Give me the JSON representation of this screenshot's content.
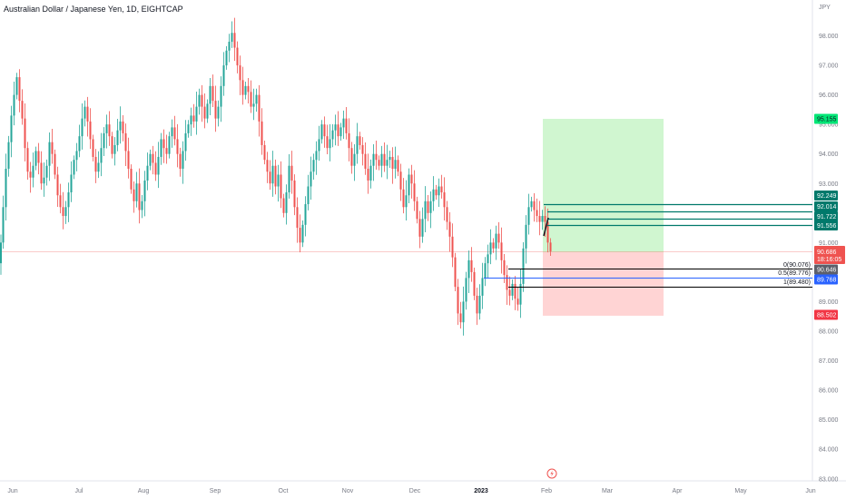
{
  "header": {
    "title": "Australian Dollar / Japanese Yen, 1D, EIGHTCAP",
    "currency": "JPY"
  },
  "colors": {
    "up": "#26a69a",
    "down": "#ef5350",
    "profit_zone": "#c8f5c8",
    "loss_zone": "#ffcdcd",
    "level_line": "#00796b",
    "fib_line": "#000000",
    "current_price": "#ef5350"
  },
  "chart_data": {
    "type": "candlestick",
    "title": "Australian Dollar / Japanese Yen, 1D, EIGHTCAP",
    "ylabel": "JPY",
    "ylim": [
      82.9,
      98.6
    ],
    "y_ticks": [
      "83.000",
      "84.000",
      "85.000",
      "86.000",
      "87.000",
      "88.000",
      "89.000",
      "90.000",
      "91.000",
      "92.000",
      "93.000",
      "94.000",
      "95.000",
      "96.000",
      "97.000",
      "98.000"
    ],
    "x_ticks": [
      "Jun",
      "Jul",
      "Aug",
      "Sep",
      "Oct",
      "Nov",
      "Dec",
      "2023",
      "Feb",
      "Mar",
      "Apr",
      "May",
      "Jun"
    ],
    "current_price": {
      "value": "90.686",
      "countdown": "18:16:05"
    },
    "price_labels": [
      {
        "text": "95.155",
        "kind": "target"
      },
      {
        "text": "92.249",
        "kind": "level"
      },
      {
        "text": "92.014",
        "kind": "level"
      },
      {
        "text": "91.722",
        "kind": "level"
      },
      {
        "text": "91.556",
        "kind": "level"
      },
      {
        "text": "90.646",
        "kind": "fib"
      },
      {
        "text": "89.768",
        "kind": "fib-mid"
      },
      {
        "text": "88.502",
        "kind": "stop"
      }
    ],
    "fib_labels": [
      "0(90.076)",
      "0.5(89.776)",
      "1(89.480)"
    ],
    "path_points": [
      [
        0,
        90.3
      ],
      [
        2,
        91.0
      ],
      [
        5,
        92.2
      ],
      [
        8,
        93.5
      ],
      [
        11,
        94.4
      ],
      [
        14,
        95.3
      ],
      [
        17,
        96.0
      ],
      [
        20,
        96.6
      ],
      [
        23,
        95.8
      ],
      [
        26,
        95.2
      ],
      [
        29,
        94.2
      ],
      [
        32,
        93.4
      ],
      [
        35,
        93.2
      ],
      [
        38,
        93.6
      ],
      [
        41,
        94.1
      ],
      [
        44,
        93.7
      ],
      [
        47,
        93.0
      ],
      [
        50,
        93.2
      ],
      [
        53,
        93.6
      ],
      [
        56,
        94.4
      ],
      [
        59,
        94.0
      ],
      [
        62,
        93.3
      ],
      [
        65,
        92.6
      ],
      [
        68,
        92.2
      ],
      [
        71,
        91.9
      ],
      [
        74,
        92.2
      ],
      [
        77,
        92.7
      ],
      [
        80,
        93.3
      ],
      [
        83,
        93.8
      ],
      [
        86,
        94.1
      ],
      [
        89,
        94.6
      ],
      [
        92,
        95.2
      ],
      [
        95,
        95.6
      ],
      [
        98,
        95.1
      ],
      [
        101,
        94.5
      ],
      [
        104,
        93.9
      ],
      [
        107,
        93.4
      ],
      [
        110,
        93.7
      ],
      [
        113,
        94.2
      ],
      [
        116,
        94.7
      ],
      [
        119,
        95.0
      ],
      [
        122,
        94.6
      ],
      [
        125,
        94.0
      ],
      [
        128,
        94.3
      ],
      [
        131,
        94.8
      ],
      [
        134,
        95.1
      ],
      [
        137,
        94.7
      ],
      [
        140,
        94.1
      ],
      [
        143,
        93.5
      ],
      [
        146,
        92.8
      ],
      [
        149,
        92.4
      ],
      [
        152,
        93.0
      ],
      [
        155,
        92.1
      ],
      [
        158,
        92.4
      ],
      [
        161,
        93.1
      ],
      [
        164,
        93.6
      ],
      [
        167,
        94.0
      ],
      [
        170,
        93.7
      ],
      [
        173,
        93.3
      ],
      [
        176,
        93.9
      ],
      [
        179,
        94.5
      ],
      [
        182,
        94.2
      ],
      [
        185,
        94.0
      ],
      [
        188,
        94.6
      ],
      [
        191,
        94.9
      ],
      [
        194,
        94.5
      ],
      [
        197,
        94.0
      ],
      [
        200,
        93.5
      ],
      [
        203,
        94.1
      ],
      [
        206,
        94.7
      ],
      [
        209,
        95.0
      ],
      [
        212,
        95.3
      ],
      [
        215,
        95.1
      ],
      [
        218,
        95.6
      ],
      [
        221,
        96.0
      ],
      [
        224,
        95.6
      ],
      [
        227,
        95.2
      ],
      [
        230,
        95.7
      ],
      [
        233,
        96.3
      ],
      [
        236,
        95.8
      ],
      [
        239,
        95.2
      ],
      [
        242,
        95.6
      ],
      [
        245,
        96.3
      ],
      [
        248,
        97.0
      ],
      [
        251,
        97.5
      ],
      [
        254,
        97.8
      ],
      [
        257,
        98.1
      ],
      [
        260,
        97.6
      ],
      [
        263,
        97.0
      ],
      [
        266,
        96.5
      ],
      [
        269,
        96.0
      ],
      [
        272,
        96.3
      ],
      [
        275,
        96.1
      ],
      [
        278,
        95.6
      ],
      [
        281,
        95.7
      ],
      [
        284,
        96.0
      ],
      [
        287,
        95.1
      ],
      [
        290,
        94.3
      ],
      [
        293,
        93.8
      ],
      [
        296,
        93.4
      ],
      [
        299,
        93.0
      ],
      [
        302,
        93.6
      ],
      [
        305,
        92.9
      ],
      [
        308,
        93.3
      ],
      [
        311,
        92.5
      ],
      [
        314,
        92.0
      ],
      [
        317,
        92.7
      ],
      [
        320,
        93.6
      ],
      [
        323,
        93.1
      ],
      [
        326,
        92.2
      ],
      [
        329,
        91.5
      ],
      [
        332,
        91.0
      ],
      [
        335,
        91.6
      ],
      [
        338,
        92.3
      ],
      [
        341,
        92.9
      ],
      [
        344,
        93.4
      ],
      [
        347,
        93.8
      ],
      [
        350,
        94.1
      ],
      [
        353,
        94.5
      ],
      [
        356,
        95.0
      ],
      [
        359,
        94.6
      ],
      [
        362,
        94.2
      ],
      [
        365,
        94.5
      ],
      [
        368,
        94.8
      ],
      [
        371,
        95.0
      ],
      [
        374,
        94.6
      ],
      [
        377,
        94.9
      ],
      [
        380,
        95.2
      ],
      [
        383,
        94.7
      ],
      [
        386,
        94.2
      ],
      [
        389,
        93.6
      ],
      [
        392,
        94.0
      ],
      [
        395,
        94.6
      ],
      [
        398,
        94.3
      ],
      [
        401,
        94.0
      ],
      [
        404,
        93.5
      ],
      [
        407,
        93.1
      ],
      [
        410,
        93.6
      ],
      [
        413,
        94.0
      ],
      [
        416,
        93.8
      ],
      [
        419,
        93.6
      ],
      [
        422,
        94.0
      ],
      [
        425,
        93.6
      ],
      [
        428,
        93.8
      ],
      [
        431,
        93.9
      ],
      [
        434,
        93.5
      ],
      [
        437,
        93.8
      ],
      [
        440,
        93.4
      ],
      [
        443,
        92.8
      ],
      [
        446,
        92.2
      ],
      [
        449,
        92.6
      ],
      [
        452,
        93.3
      ],
      [
        455,
        93.0
      ],
      [
        458,
        92.4
      ],
      [
        461,
        91.8
      ],
      [
        464,
        91.2
      ],
      [
        467,
        91.8
      ],
      [
        470,
        92.4
      ],
      [
        473,
        92.0
      ],
      [
        476,
        92.4
      ],
      [
        479,
        92.8
      ],
      [
        482,
        92.6
      ],
      [
        485,
        92.9
      ],
      [
        488,
        92.7
      ],
      [
        491,
        92.2
      ],
      [
        494,
        91.7
      ],
      [
        497,
        91.2
      ],
      [
        500,
        90.5
      ],
      [
        503,
        89.5
      ],
      [
        506,
        88.6
      ],
      [
        509,
        88.3
      ],
      [
        512,
        89.0
      ],
      [
        515,
        89.8
      ],
      [
        518,
        90.4
      ],
      [
        521,
        90.0
      ],
      [
        524,
        89.2
      ],
      [
        527,
        88.6
      ],
      [
        530,
        89.2
      ],
      [
        533,
        89.8
      ],
      [
        536,
        90.3
      ],
      [
        539,
        90.6
      ],
      [
        542,
        91.0
      ],
      [
        545,
        90.8
      ],
      [
        548,
        91.3
      ],
      [
        551,
        91.0
      ],
      [
        554,
        90.4
      ],
      [
        557,
        89.9
      ],
      [
        560,
        89.4
      ],
      [
        563,
        89.2
      ],
      [
        566,
        89.6
      ],
      [
        569,
        89.1
      ],
      [
        572,
        88.9
      ],
      [
        575,
        89.6
      ],
      [
        578,
        90.8
      ],
      [
        581,
        91.6
      ],
      [
        584,
        92.2
      ],
      [
        587,
        92.4
      ],
      [
        590,
        92.1
      ],
      [
        593,
        91.9
      ],
      [
        596,
        91.7
      ],
      [
        599,
        91.9
      ],
      [
        602,
        91.7
      ],
      [
        605,
        91.0
      ],
      [
        608,
        90.7
      ]
    ]
  }
}
